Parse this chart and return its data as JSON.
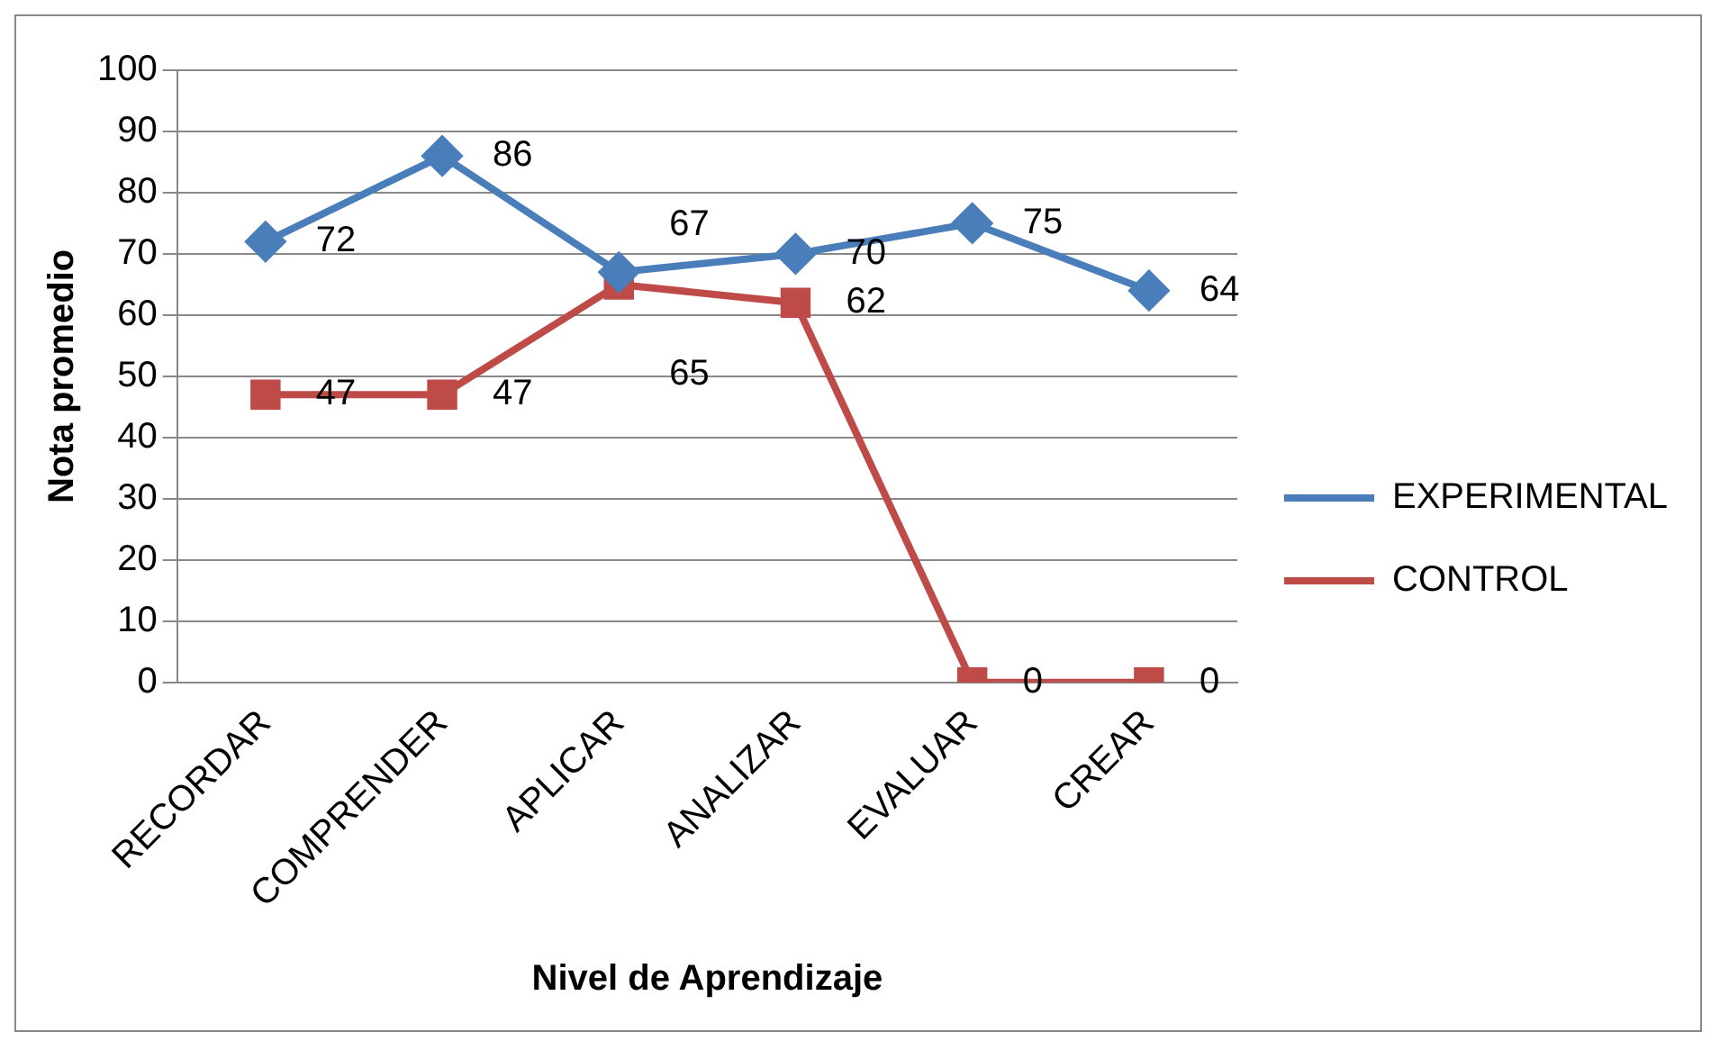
{
  "chart_data": {
    "type": "line",
    "xlabel": "Nivel de Aprendizaje",
    "ylabel": "Nota promedio",
    "categories": [
      "RECORDAR",
      "COMPRENDER",
      "APLICAR",
      "ANALIZAR",
      "EVALUAR",
      "CREAR"
    ],
    "series": [
      {
        "name": "EXPERIMENTAL",
        "color": "#4a7ebb",
        "marker": "diamond",
        "values": [
          72,
          86,
          67,
          70,
          75,
          64
        ]
      },
      {
        "name": "CONTROL",
        "color": "#be4b48",
        "marker": "square",
        "values": [
          47,
          47,
          65,
          62,
          0,
          0
        ]
      }
    ],
    "ylim": [
      0,
      100
    ],
    "yticks": [
      0,
      10,
      20,
      30,
      40,
      50,
      60,
      70,
      80,
      90,
      100
    ],
    "grid": "y",
    "legend": "right",
    "data_labels": true,
    "line_style": "solid"
  }
}
